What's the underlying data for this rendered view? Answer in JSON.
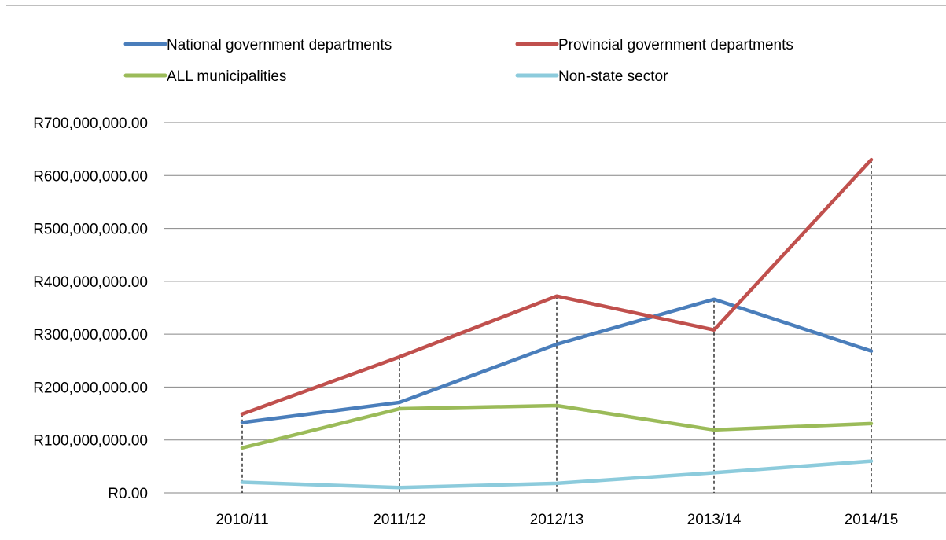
{
  "chart_data": {
    "type": "line",
    "categories": [
      "2010/11",
      "2011/12",
      "2012/13",
      "2013/14",
      "2014/15"
    ],
    "ylim": [
      0,
      700000000
    ],
    "yticks": [
      {
        "value": 0,
        "label": "R0.00"
      },
      {
        "value": 100000000,
        "label": "R100,000,000.00"
      },
      {
        "value": 200000000,
        "label": "R200,000,000.00"
      },
      {
        "value": 300000000,
        "label": "R300,000,000.00"
      },
      {
        "value": 400000000,
        "label": "R400,000,000.00"
      },
      {
        "value": 500000000,
        "label": "R500,000,000.00"
      },
      {
        "value": 600000000,
        "label": "R600,000,000.00"
      },
      {
        "value": 700000000,
        "label": "R700,000,000.00"
      }
    ],
    "grid": true,
    "drop_lines": true,
    "legend_position": "top",
    "series": [
      {
        "name": "National government departments",
        "color": "#4a7ebb",
        "values": [
          133000000,
          171000000,
          281000000,
          366000000,
          268000000
        ]
      },
      {
        "name": "Provincial government departments",
        "color": "#c0504d",
        "values": [
          149000000,
          257000000,
          372000000,
          308000000,
          630000000
        ]
      },
      {
        "name": "ALL municipalities",
        "color": "#9bbb59",
        "values": [
          85000000,
          159000000,
          165000000,
          119000000,
          131000000
        ]
      },
      {
        "name": "Non-state sector",
        "color": "#8ccbdc",
        "values": [
          20000000,
          10000000,
          18000000,
          38000000,
          60000000
        ]
      }
    ]
  }
}
